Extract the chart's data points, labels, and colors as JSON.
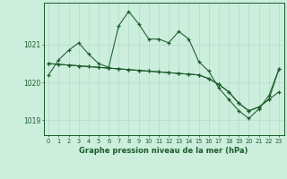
{
  "title": "Graphe pression niveau de la mer (hPa)",
  "background_color": "#cceedd",
  "grid_color": "#b8ddd0",
  "line_color": "#1a5c2a",
  "x_labels": [
    "0",
    "1",
    "2",
    "3",
    "4",
    "5",
    "6",
    "7",
    "8",
    "9",
    "10",
    "11",
    "12",
    "13",
    "14",
    "15",
    "16",
    "17",
    "18",
    "19",
    "20",
    "21",
    "22",
    "23"
  ],
  "ylim": [
    1018.6,
    1022.1
  ],
  "yticks": [
    1019,
    1020,
    1021
  ],
  "figsize": [
    3.2,
    2.0
  ],
  "dpi": 100,
  "series_smooth": [
    1020.5,
    1020.5,
    1020.45,
    1020.4,
    1020.35,
    1020.3,
    1020.25,
    1020.2,
    1020.15,
    1020.1,
    1020.05,
    1020.0,
    1019.95,
    1019.9,
    1019.85,
    1019.8,
    1019.75,
    1019.7,
    1019.6,
    1019.45,
    1019.3,
    1019.35,
    1019.55,
    1019.75
  ],
  "series_smooth2": [
    1020.5,
    1020.5,
    1020.45,
    1020.4,
    1020.35,
    1020.3,
    1020.25,
    1020.2,
    1020.15,
    1020.1,
    1020.05,
    1020.0,
    1019.95,
    1019.9,
    1019.85,
    1019.8,
    1019.75,
    1019.7,
    1019.6,
    1019.45,
    1019.3,
    1019.35,
    1019.55,
    1020.35
  ],
  "series_jagged": [
    1020.2,
    1020.6,
    1020.85,
    1021.05,
    1020.75,
    1020.5,
    1020.4,
    1021.5,
    1021.85,
    1021.55,
    1021.15,
    1021.15,
    1021.05,
    1021.35,
    1021.15,
    1020.55,
    1020.3,
    1019.85,
    1019.55,
    1019.25,
    1019.05,
    1019.3,
    1019.65,
    1020.35
  ]
}
